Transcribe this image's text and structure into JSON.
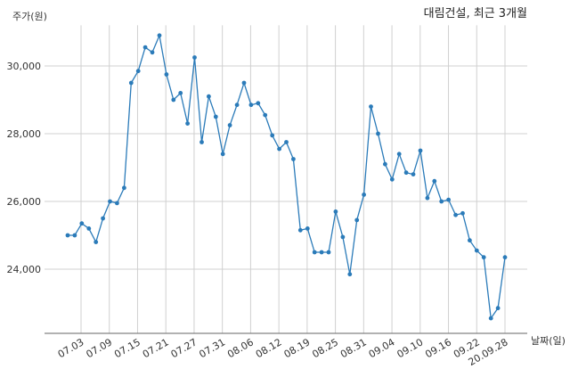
{
  "chart_data": {
    "type": "line",
    "title": "대림건설, 최근 3개월",
    "ylabel": "주가(원)",
    "xlabel": "날짜(일)",
    "ylim": [
      22000,
      31200
    ],
    "yticks": [
      24000,
      26000,
      28000,
      30000
    ],
    "ytick_labels": [
      "24,000",
      "26,000",
      "28,000",
      "30,000"
    ],
    "xtick_labels": [
      "07.03",
      "07.09",
      "07.15",
      "07.21",
      "07.27",
      "07.31",
      "08.06",
      "08.12",
      "08.19",
      "08.25",
      "08.31",
      "09.04",
      "09.10",
      "09.16",
      "09.22",
      "20.09.28"
    ],
    "grid": true,
    "legend": false,
    "color": "#2b7bb9",
    "series": [
      {
        "values": [
          25000,
          25000,
          25350,
          25200,
          24800,
          25500,
          26000,
          25950,
          26400,
          29500,
          29850,
          30550,
          30400,
          30900,
          29750,
          29000,
          29200,
          28300,
          30250,
          27750,
          29100,
          28500,
          27400,
          28250,
          28850,
          29500,
          28850,
          28900,
          28550,
          27950,
          27550,
          27750,
          27250,
          25150,
          25200,
          24500,
          24500,
          24500,
          25700,
          24950,
          23850,
          25450,
          26200,
          28800,
          28000,
          27100,
          26650,
          27400,
          26850,
          26800,
          27500,
          26100,
          26600,
          26000,
          26050,
          25600,
          25650,
          24850,
          24550,
          24350,
          22550,
          22850,
          24350
        ]
      }
    ]
  }
}
